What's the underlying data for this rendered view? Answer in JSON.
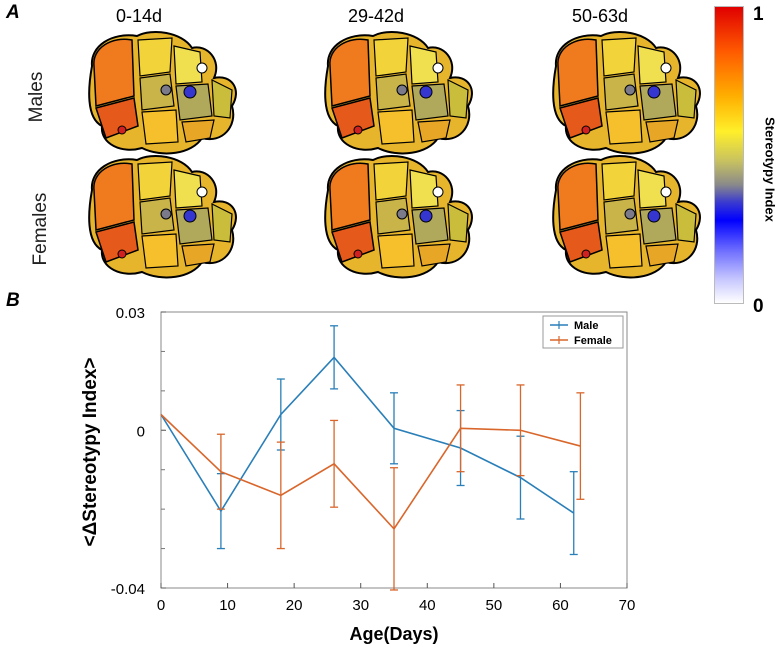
{
  "panel_a": {
    "label": "A",
    "columns": [
      "0-14d",
      "29-42d",
      "50-63d"
    ],
    "rows": [
      "Males",
      "Females"
    ]
  },
  "panel_b": {
    "label": "B"
  },
  "colorbar": {
    "title": "Stereotypy Index",
    "max_label": "1",
    "min_label": "0"
  },
  "colors": {
    "male": "#2a7fb8",
    "female": "#d9662b"
  },
  "chart_data": {
    "type": "line",
    "xlabel": "Age(Days)",
    "ylabel": "<ΔStereotypy Index>",
    "xlim": [
      0,
      70
    ],
    "ylim": [
      -0.04,
      0.03
    ],
    "xticks": [
      0,
      10,
      20,
      30,
      40,
      50,
      60,
      70
    ],
    "yticks": [
      -0.04,
      0,
      0.03
    ],
    "ytick_labels": [
      "-0.04",
      "0",
      "0.03"
    ],
    "legend_position": "top-right",
    "series": [
      {
        "name": "Male",
        "x": [
          0,
          9,
          18,
          26,
          35,
          45,
          54,
          62
        ],
        "y": [
          0.004,
          -0.0205,
          0.004,
          0.0185,
          0.0005,
          -0.0045,
          -0.012,
          -0.021
        ],
        "err": [
          0,
          0.0095,
          0.009,
          0.008,
          0.009,
          0.0095,
          0.0105,
          0.0105
        ]
      },
      {
        "name": "Female",
        "x": [
          0,
          9,
          18,
          26,
          35,
          45,
          54,
          63
        ],
        "y": [
          0.004,
          -0.0105,
          -0.0165,
          -0.0085,
          -0.025,
          0.0005,
          0,
          -0.004
        ],
        "err": [
          0,
          0.0095,
          0.0135,
          0.011,
          0.0155,
          0.011,
          0.0115,
          0.0135
        ]
      }
    ]
  }
}
